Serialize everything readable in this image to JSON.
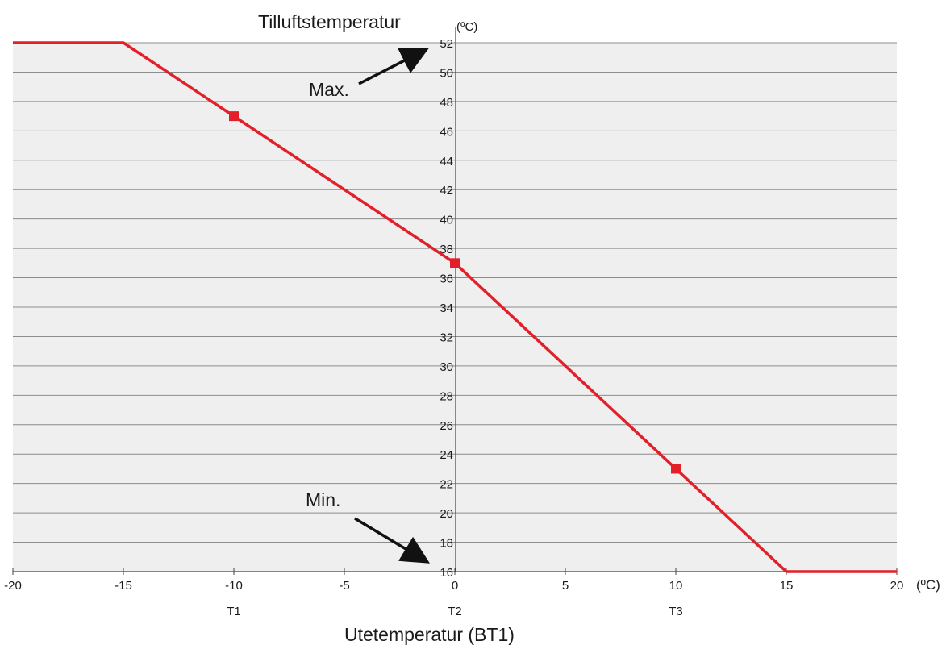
{
  "chart_data": {
    "type": "line",
    "ytitle": "Tilluftstemperatur",
    "yunit": "(ºC)",
    "xtitle": "Utetemperatur (BT1)",
    "xunit": "(ºC)",
    "xlim": [
      -20,
      20
    ],
    "ylim": [
      16,
      52
    ],
    "xticks": [
      -20,
      -15,
      -10,
      -5,
      0,
      5,
      10,
      15,
      20
    ],
    "yticks": [
      16,
      18,
      20,
      22,
      24,
      26,
      28,
      30,
      32,
      34,
      36,
      38,
      40,
      42,
      44,
      46,
      48,
      50,
      52
    ],
    "grid": true,
    "series": [
      {
        "x": [
          -20,
          -15,
          -10,
          0,
          10,
          15,
          20
        ],
        "y": [
          52,
          52,
          47,
          37,
          23,
          16,
          16
        ]
      }
    ],
    "markers": [
      {
        "x": -10,
        "y": 47,
        "label": "T1"
      },
      {
        "x": 0,
        "y": 37,
        "label": "T2"
      },
      {
        "x": 10,
        "y": 23,
        "label": "T3"
      }
    ],
    "annotations": [
      {
        "text": "Max.",
        "points_to": 52
      },
      {
        "text": "Min.",
        "points_to": 16
      }
    ],
    "colors": {
      "line": "#e3202a",
      "plot_background": "#efefef",
      "grid": "#8c8c8c",
      "arrow": "#111111"
    }
  }
}
